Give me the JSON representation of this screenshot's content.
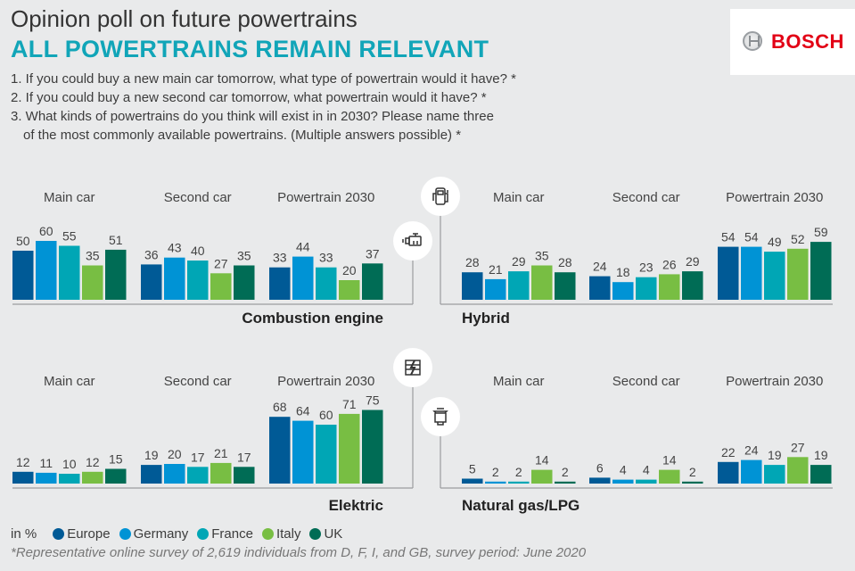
{
  "header": {
    "title": "Opinion poll on future powertrains",
    "subtitle": "ALL POWERTRAINS REMAIN RELEVANT",
    "questions": [
      "1. If you could buy a new main car tomorrow, what type of powertrain would it have? *",
      "2. If you could buy a new second car tomorrow, what powertrain would it have? *",
      "3. What kinds of powertrains do you think will exist in in 2030? Please name three",
      "of the most commonly available powertrains. (Multiple answers possible) *"
    ]
  },
  "logo": {
    "text": "BOSCH",
    "color": "#e20015"
  },
  "legend": {
    "unit": "in %",
    "items": [
      {
        "label": "Europe",
        "color": "#005a96"
      },
      {
        "label": "Germany",
        "color": "#0093d5"
      },
      {
        "label": "France",
        "color": "#00a6b5"
      },
      {
        "label": "Italy",
        "color": "#78be43"
      },
      {
        "label": "UK",
        "color": "#006c55"
      }
    ]
  },
  "footnote": "*Representative online survey of 2,619 individuals from D, F, I, and GB, survey period: June 2020",
  "chart_data": [
    {
      "type": "bar",
      "title": "Combustion engine",
      "icon": "engine-icon",
      "categories": [
        "Main car",
        "Second car",
        "Powertrain 2030"
      ],
      "series": [
        {
          "name": "Europe",
          "values": [
            50,
            36,
            33
          ]
        },
        {
          "name": "Germany",
          "values": [
            60,
            43,
            44
          ]
        },
        {
          "name": "France",
          "values": [
            55,
            40,
            33
          ]
        },
        {
          "name": "Italy",
          "values": [
            35,
            27,
            20
          ]
        },
        {
          "name": "UK",
          "values": [
            51,
            35,
            37
          ]
        }
      ],
      "ylabel": "in %",
      "ylim": [
        0,
        100
      ],
      "grid": false
    },
    {
      "type": "bar",
      "title": "Hybrid",
      "icon": "fuel-charging-pump-icon",
      "categories": [
        "Main car",
        "Second car",
        "Powertrain 2030"
      ],
      "series": [
        {
          "name": "Europe",
          "values": [
            28,
            24,
            54
          ]
        },
        {
          "name": "Germany",
          "values": [
            21,
            18,
            54
          ]
        },
        {
          "name": "France",
          "values": [
            29,
            23,
            49
          ]
        },
        {
          "name": "Italy",
          "values": [
            35,
            26,
            52
          ]
        },
        {
          "name": "UK",
          "values": [
            28,
            29,
            59
          ]
        }
      ],
      "ylabel": "in %",
      "ylim": [
        0,
        100
      ],
      "grid": false
    },
    {
      "type": "bar",
      "title": "Elektric",
      "icon": "battery-lightning-icon",
      "categories": [
        "Main car",
        "Second car",
        "Powertrain 2030"
      ],
      "series": [
        {
          "name": "Europe",
          "values": [
            12,
            19,
            68
          ]
        },
        {
          "name": "Germany",
          "values": [
            11,
            20,
            64
          ]
        },
        {
          "name": "France",
          "values": [
            10,
            17,
            60
          ]
        },
        {
          "name": "Italy",
          "values": [
            12,
            21,
            71
          ]
        },
        {
          "name": "UK",
          "values": [
            15,
            17,
            75
          ]
        }
      ],
      "ylabel": "in %",
      "ylim": [
        0,
        100
      ],
      "grid": false
    },
    {
      "type": "bar",
      "title": "Natural gas/LPG",
      "icon": "gas-tank-icon",
      "categories": [
        "Main car",
        "Second car",
        "Powertrain 2030"
      ],
      "series": [
        {
          "name": "Europe",
          "values": [
            5,
            6,
            22
          ]
        },
        {
          "name": "Germany",
          "values": [
            2,
            4,
            24
          ]
        },
        {
          "name": "France",
          "values": [
            2,
            4,
            19
          ]
        },
        {
          "name": "Italy",
          "values": [
            14,
            14,
            27
          ]
        },
        {
          "name": "UK",
          "values": [
            2,
            2,
            19
          ]
        }
      ],
      "ylabel": "in %",
      "ylim": [
        0,
        100
      ],
      "grid": false
    }
  ]
}
